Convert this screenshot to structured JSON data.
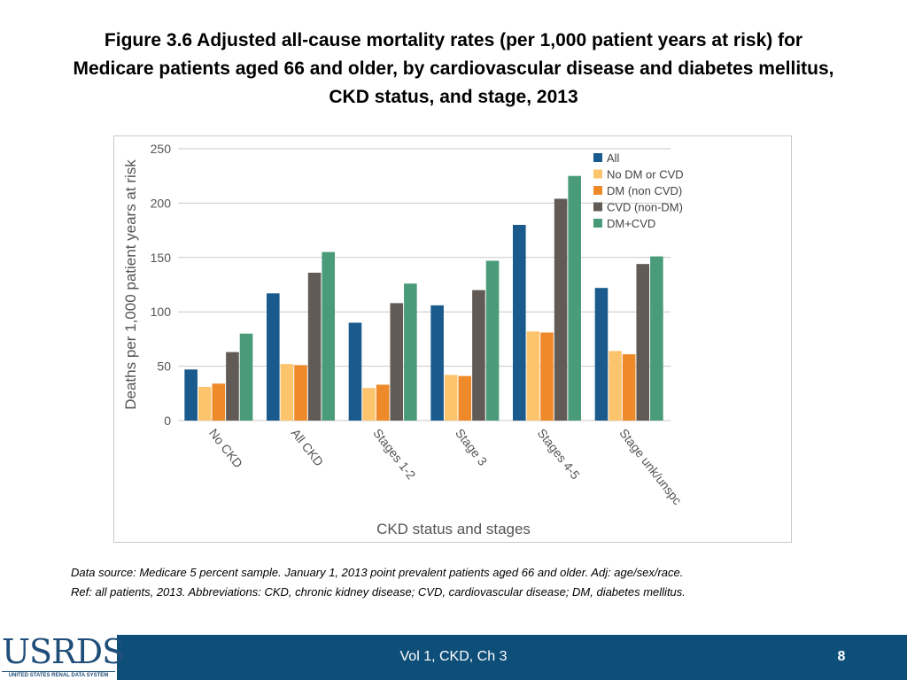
{
  "slide": {
    "title_lines": [
      "Figure 3.6  Adjusted all-cause mortality rates (per 1,000 patient years at risk) for",
      "Medicare patients aged 66 and older, by cardiovascular disease and diabetes mellitus,",
      "CKD status, and stage, 2013"
    ],
    "note_lines": [
      "Data source: Medicare 5 percent sample. January 1, 2013 point prevalent patients aged 66 and older. Adj: age/sex/race.",
      "Ref: all patients, 2013. Abbreviations: CKD, chronic kidney disease; CVD, cardiovascular disease; DM, diabetes mellitus."
    ]
  },
  "footer": {
    "logo_text": "USRDS",
    "logo_subtext": "UNITED STATES RENAL DATA SYSTEM",
    "center_text": "Vol 1, CKD, Ch 3",
    "page_number": "8"
  },
  "chart_data": {
    "type": "bar",
    "title": "",
    "xlabel": "CKD status and stages",
    "ylabel": "Deaths per 1,000 patient years at risk",
    "ylim": [
      0,
      250
    ],
    "yticks": [
      0,
      50,
      100,
      150,
      200,
      250
    ],
    "grid": true,
    "legend_position": "top-right",
    "categories": [
      "No CKD",
      "All CKD",
      "Stages 1-2",
      "Stage 3",
      "Stages 4-5",
      "Stage unk/unspc"
    ],
    "series": [
      {
        "name": "All",
        "color": "#1a5a8c",
        "values": [
          47,
          117,
          90,
          106,
          180,
          122
        ]
      },
      {
        "name": "No DM or CVD",
        "color": "#fdc46e",
        "values": [
          31,
          52,
          30,
          42,
          82,
          64
        ]
      },
      {
        "name": "DM (non CVD)",
        "color": "#ee8a2a",
        "values": [
          34,
          51,
          33,
          41,
          81,
          61
        ]
      },
      {
        "name": "CVD (non-DM)",
        "color": "#625b55",
        "values": [
          63,
          136,
          108,
          120,
          204,
          144
        ]
      },
      {
        "name": "DM+CVD",
        "color": "#4a9b7a",
        "values": [
          80,
          155,
          126,
          147,
          225,
          151
        ]
      }
    ]
  }
}
